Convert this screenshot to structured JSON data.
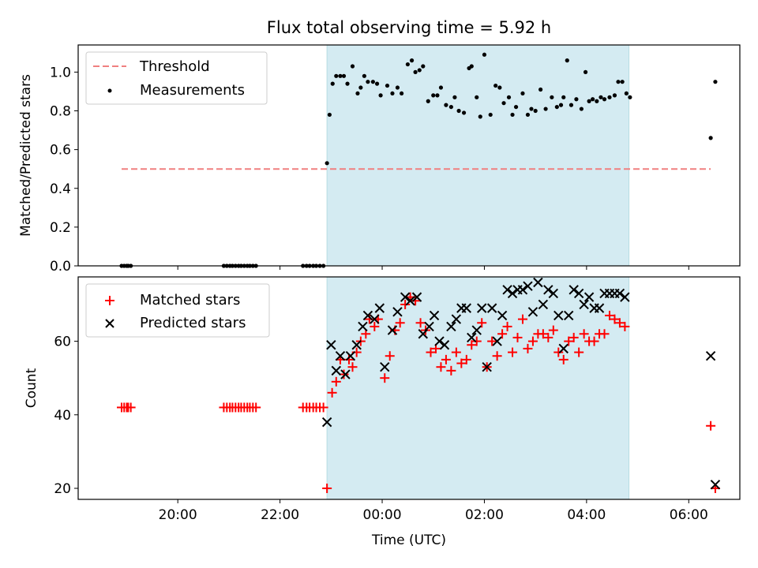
{
  "chart_data": [
    {
      "type": "scatter",
      "title": "Flux total observing time = 5.92 h",
      "xlabel": "",
      "ylabel": "Matched/Predicted stars",
      "xlim": [
        -5.95,
        7.0
      ],
      "ylim": [
        0.0,
        1.14
      ],
      "yticks": [
        0.0,
        0.2,
        0.4,
        0.6,
        0.8,
        1.0
      ],
      "yticklabels": [
        "0.0",
        "0.2",
        "0.4",
        "0.6",
        "0.8",
        "1.0"
      ],
      "x_unit": "hours relative to 00:00 UTC",
      "shaded_span": [
        -1.08,
        4.83
      ],
      "shade_color": "#d4ebf2",
      "legend": {
        "location": "upper left",
        "entries": [
          "Threshold",
          "Measurements"
        ]
      },
      "series": [
        {
          "name": "Threshold",
          "kind": "dashed-line",
          "color": "#f08080",
          "x": [
            -5.1,
            6.43
          ],
          "y": [
            0.5,
            0.5
          ]
        },
        {
          "name": "Measurements",
          "kind": "dot",
          "color": "#000000",
          "x": [
            -5.1,
            -5.05,
            -5.0,
            -4.97,
            -4.92,
            -3.1,
            -3.04,
            -2.98,
            -2.93,
            -2.87,
            -2.81,
            -2.76,
            -2.7,
            -2.64,
            -2.59,
            -2.53,
            -2.47,
            -1.55,
            -1.48,
            -1.42,
            -1.35,
            -1.29,
            -1.22,
            -1.15,
            -1.08,
            -1.03,
            -0.97,
            -0.9,
            -0.82,
            -0.75,
            -0.68,
            -0.58,
            -0.48,
            -0.42,
            -0.35,
            -0.28,
            -0.18,
            -0.1,
            -0.03,
            0.1,
            0.2,
            0.3,
            0.38,
            0.5,
            0.58,
            0.65,
            0.73,
            0.8,
            0.9,
            1.0,
            1.08,
            1.15,
            1.25,
            1.35,
            1.42,
            1.5,
            1.6,
            1.7,
            1.75,
            1.85,
            1.92,
            2.0,
            2.12,
            2.22,
            2.3,
            2.38,
            2.48,
            2.55,
            2.62,
            2.75,
            2.85,
            2.92,
            3.0,
            3.1,
            3.2,
            3.32,
            3.42,
            3.5,
            3.55,
            3.62,
            3.7,
            3.8,
            3.9,
            3.98,
            4.05,
            4.12,
            4.2,
            4.28,
            4.35,
            4.45,
            4.55,
            4.62,
            4.7,
            4.78,
            4.85,
            6.43,
            6.52
          ],
          "y": [
            0.0,
            0.0,
            0.0,
            0.0,
            0.0,
            0.0,
            0.0,
            0.0,
            0.0,
            0.0,
            0.0,
            0.0,
            0.0,
            0.0,
            0.0,
            0.0,
            0.0,
            0.0,
            0.0,
            0.0,
            0.0,
            0.0,
            0.0,
            0.0,
            0.53,
            0.78,
            0.94,
            0.98,
            0.98,
            0.98,
            0.94,
            1.03,
            0.89,
            0.92,
            0.98,
            0.95,
            0.95,
            0.94,
            0.88,
            0.93,
            0.89,
            0.92,
            0.89,
            1.04,
            1.06,
            1.0,
            1.01,
            1.03,
            0.85,
            0.88,
            0.88,
            0.92,
            0.83,
            0.82,
            0.87,
            0.8,
            0.79,
            1.02,
            1.03,
            0.87,
            0.77,
            1.09,
            0.78,
            0.93,
            0.92,
            0.84,
            0.87,
            0.78,
            0.82,
            0.89,
            0.78,
            0.81,
            0.8,
            0.91,
            0.81,
            0.87,
            0.82,
            0.83,
            0.87,
            1.06,
            0.83,
            0.86,
            0.81,
            1.0,
            0.85,
            0.86,
            0.85,
            0.87,
            0.86,
            0.87,
            0.88,
            0.95,
            0.95,
            0.89,
            0.87,
            0.66,
            0.95
          ]
        }
      ]
    },
    {
      "type": "scatter",
      "title": "",
      "xlabel": "Time (UTC)",
      "ylabel": "Count",
      "xlim": [
        -5.95,
        7.0
      ],
      "ylim": [
        17.0,
        77.5
      ],
      "xticks": [
        -4,
        -2,
        0,
        2,
        4,
        6
      ],
      "xticklabels": [
        "20:00",
        "22:00",
        "00:00",
        "02:00",
        "04:00",
        "06:00"
      ],
      "yticks": [
        20,
        40,
        60
      ],
      "yticklabels": [
        "20",
        "40",
        "60"
      ],
      "shaded_span": [
        -1.08,
        4.83
      ],
      "shade_color": "#d4ebf2",
      "legend": {
        "location": "upper left",
        "entries": [
          "Matched stars",
          "Predicted stars"
        ]
      },
      "series": [
        {
          "name": "Matched stars",
          "marker": "plus",
          "color": "#ff0000",
          "x": [
            -5.1,
            -5.05,
            -5.0,
            -4.97,
            -4.92,
            -3.1,
            -3.04,
            -2.98,
            -2.93,
            -2.87,
            -2.81,
            -2.76,
            -2.7,
            -2.64,
            -2.59,
            -2.53,
            -2.47,
            -1.55,
            -1.48,
            -1.42,
            -1.35,
            -1.29,
            -1.22,
            -1.15,
            -1.08,
            -0.98,
            -0.9,
            -0.82,
            -0.75,
            -0.65,
            -0.58,
            -0.5,
            -0.42,
            -0.32,
            -0.25,
            -0.15,
            -0.08,
            0.05,
            0.15,
            0.25,
            0.35,
            0.45,
            0.55,
            0.65,
            0.75,
            0.85,
            0.95,
            1.05,
            1.15,
            1.25,
            1.35,
            1.45,
            1.55,
            1.65,
            1.75,
            1.85,
            1.95,
            2.05,
            2.15,
            2.25,
            2.35,
            2.45,
            2.55,
            2.65,
            2.75,
            2.85,
            2.95,
            3.05,
            3.15,
            3.25,
            3.35,
            3.45,
            3.55,
            3.65,
            3.75,
            3.85,
            3.95,
            4.05,
            4.15,
            4.25,
            4.35,
            4.45,
            4.55,
            4.65,
            4.75,
            6.43,
            6.52
          ],
          "y": [
            42,
            42,
            42,
            42,
            42,
            42,
            42,
            42,
            42,
            42,
            42,
            42,
            42,
            42,
            42,
            42,
            42,
            42,
            42,
            42,
            42,
            42,
            42,
            42,
            20,
            46,
            49,
            55,
            51,
            55,
            53,
            57,
            60,
            62,
            66,
            64,
            66,
            50,
            56,
            63,
            65,
            70,
            72,
            71,
            65,
            63,
            57,
            58,
            53,
            55,
            52,
            57,
            54,
            55,
            59,
            60,
            65,
            53,
            60,
            56,
            62,
            64,
            57,
            61,
            66,
            58,
            60,
            62,
            62,
            61,
            63,
            57,
            55,
            60,
            61,
            57,
            62,
            60,
            60,
            62,
            62,
            67,
            66,
            65,
            64,
            37,
            20
          ]
        },
        {
          "name": "Predicted stars",
          "marker": "cross",
          "color": "#000000",
          "x": [
            -1.08,
            -1.0,
            -0.9,
            -0.82,
            -0.72,
            -0.62,
            -0.5,
            -0.38,
            -0.28,
            -0.15,
            -0.05,
            0.05,
            0.2,
            0.3,
            0.45,
            0.55,
            0.68,
            0.8,
            0.92,
            1.02,
            1.12,
            1.22,
            1.35,
            1.45,
            1.55,
            1.65,
            1.75,
            1.85,
            1.95,
            2.05,
            2.15,
            2.25,
            2.35,
            2.45,
            2.55,
            2.65,
            2.75,
            2.85,
            2.95,
            3.05,
            3.15,
            3.25,
            3.35,
            3.45,
            3.55,
            3.65,
            3.75,
            3.85,
            3.95,
            4.05,
            4.15,
            4.25,
            4.35,
            4.45,
            4.55,
            4.65,
            4.75,
            6.43,
            6.52
          ],
          "y": [
            38,
            59,
            52,
            56,
            51,
            56,
            59,
            64,
            67,
            66,
            69,
            53,
            63,
            68,
            72,
            71,
            72,
            62,
            64,
            67,
            60,
            59,
            64,
            66,
            69,
            69,
            61,
            63,
            69,
            53,
            69,
            60,
            67,
            74,
            73,
            74,
            74,
            75,
            68,
            76,
            70,
            74,
            73,
            67,
            58,
            67,
            74,
            73,
            70,
            72,
            69,
            69,
            73,
            73,
            73,
            73,
            72,
            56,
            21
          ]
        }
      ]
    }
  ]
}
